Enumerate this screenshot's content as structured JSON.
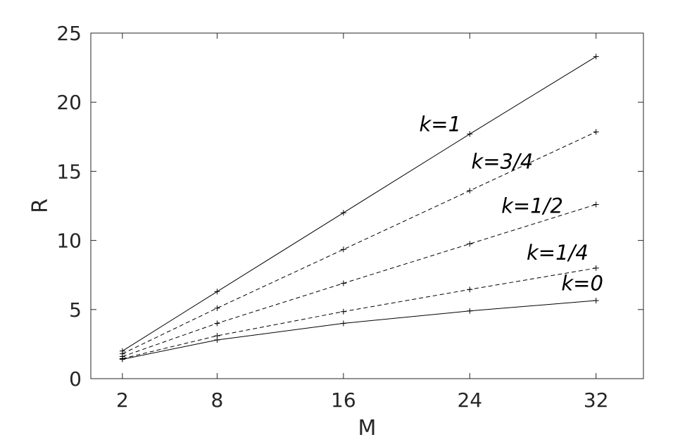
{
  "chart_data": {
    "type": "line",
    "title": "",
    "xlabel": "M",
    "ylabel": "R",
    "xlim": [
      0,
      35
    ],
    "ylim": [
      0,
      25
    ],
    "xticks": [
      2,
      8,
      16,
      24,
      32
    ],
    "xtick_labels": [
      "2",
      "8",
      "16",
      "24",
      "32"
    ],
    "yticks": [
      0,
      5,
      10,
      15,
      20,
      25
    ],
    "ytick_labels": [
      "0",
      "5",
      "10",
      "15",
      "20",
      "25"
    ],
    "grid": false,
    "legend": "none",
    "x": [
      2,
      8,
      16,
      24,
      32
    ],
    "series": [
      {
        "name": "k=1",
        "style": "solid",
        "values": [
          2.0,
          6.3,
          12.0,
          17.7,
          23.3
        ],
        "label_at": [
          20.8,
          17.9
        ]
      },
      {
        "name": "k=3/4",
        "style": "dashed",
        "values": [
          1.8,
          5.1,
          9.35,
          13.6,
          17.85
        ],
        "label_at": [
          24.1,
          15.2
        ]
      },
      {
        "name": "k=1/2",
        "style": "dashed",
        "values": [
          1.6,
          4.0,
          6.9,
          9.75,
          12.6
        ],
        "label_at": [
          26.0,
          12.0
        ]
      },
      {
        "name": "k=1/4",
        "style": "dashed",
        "values": [
          1.45,
          3.1,
          4.85,
          6.45,
          8.0
        ],
        "label_at": [
          27.6,
          8.6
        ]
      },
      {
        "name": "k=0",
        "style": "solid",
        "values": [
          1.4,
          2.8,
          4.0,
          4.9,
          5.65
        ],
        "label_at": [
          29.8,
          6.4
        ]
      }
    ]
  }
}
